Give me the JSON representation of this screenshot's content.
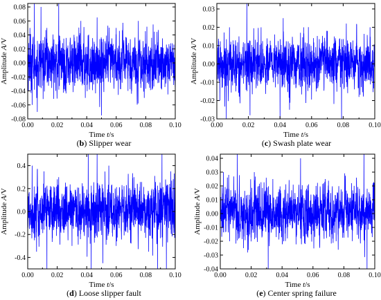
{
  "chart_data": [
    {
      "type": "line",
      "panel_label": "b",
      "caption": "Slipper wear",
      "xlabel": "Time t/s",
      "ylabel": "Amplitude A/V",
      "xlim": [
        0,
        0.1
      ],
      "ylim": [
        -0.08,
        0.085
      ],
      "xticks": [
        "0.00",
        "0.02",
        "0.04",
        "0.06",
        "0.08",
        "0.10"
      ],
      "yticks": [
        "-0.08",
        "-0.06",
        "-0.04",
        "-0.02",
        "0.00",
        "0.02",
        "0.04",
        "0.06",
        "0.08"
      ],
      "series_color": "#0000ff",
      "noise_std": 0.018,
      "spikes": [
        [
          0.0015,
          0.05
        ],
        [
          0.003,
          -0.06
        ],
        [
          0.0045,
          0.085
        ],
        [
          0.0065,
          -0.07
        ],
        [
          0.009,
          0.08
        ],
        [
          0.013,
          0.05
        ],
        [
          0.019,
          -0.04
        ],
        [
          0.021,
          0.085
        ],
        [
          0.036,
          0.06
        ],
        [
          0.039,
          -0.05
        ],
        [
          0.047,
          0.065
        ],
        [
          0.05,
          -0.075
        ],
        [
          0.06,
          0.05
        ],
        [
          0.068,
          -0.04
        ],
        [
          0.075,
          0.06
        ],
        [
          0.079,
          -0.05
        ],
        [
          0.085,
          0.055
        ],
        [
          0.095,
          -0.045
        ]
      ]
    },
    {
      "type": "line",
      "panel_label": "c",
      "caption": "Swash plate wear",
      "xlabel": "Time t/s",
      "ylabel": "Amplitude A/V",
      "xlim": [
        0,
        0.1
      ],
      "ylim": [
        -0.03,
        0.033
      ],
      "xticks": [
        "0.00",
        "0.02",
        "0.04",
        "0.06",
        "0.08",
        "0.10"
      ],
      "yticks": [
        "-0.03",
        "-0.02",
        "-0.01",
        "0.00",
        "0.01",
        "0.02",
        "0.03"
      ],
      "series_color": "#0000ff",
      "noise_std": 0.0065,
      "spikes": [
        [
          0.002,
          -0.02
        ],
        [
          0.006,
          -0.03
        ],
        [
          0.008,
          0.02
        ],
        [
          0.012,
          -0.015
        ],
        [
          0.019,
          0.033
        ],
        [
          0.021,
          -0.028
        ],
        [
          0.028,
          0.02
        ],
        [
          0.04,
          -0.03
        ],
        [
          0.042,
          0.025
        ],
        [
          0.046,
          -0.025
        ],
        [
          0.055,
          0.02
        ],
        [
          0.07,
          0.018
        ],
        [
          0.079,
          -0.03
        ],
        [
          0.082,
          0.022
        ],
        [
          0.09,
          -0.018
        ],
        [
          0.097,
          0.02
        ]
      ]
    },
    {
      "type": "line",
      "panel_label": "d",
      "caption": "Loose slipper fault",
      "xlabel": "Time t/s",
      "ylabel": "Amplitude A/V",
      "xlim": [
        0,
        0.1
      ],
      "ylim": [
        -0.5,
        0.5
      ],
      "xticks": [
        "0.00",
        "0.02",
        "0.04",
        "0.06",
        "0.08",
        "0.10"
      ],
      "yticks": [
        "-0.4",
        "-0.2",
        "0.0",
        "0.2",
        "0.4"
      ],
      "series_color": "#0000ff",
      "noise_std": 0.11,
      "spikes": [
        [
          0.003,
          0.4
        ],
        [
          0.006,
          -0.35
        ],
        [
          0.011,
          0.35
        ],
        [
          0.013,
          -0.5
        ],
        [
          0.021,
          0.3
        ],
        [
          0.03,
          -0.3
        ],
        [
          0.041,
          0.5
        ],
        [
          0.043,
          -0.5
        ],
        [
          0.047,
          0.5
        ],
        [
          0.051,
          -0.45
        ],
        [
          0.055,
          0.4
        ],
        [
          0.06,
          -0.3
        ],
        [
          0.072,
          0.3
        ],
        [
          0.082,
          -0.35
        ],
        [
          0.088,
          -0.5
        ],
        [
          0.091,
          0.5
        ],
        [
          0.094,
          -0.5
        ],
        [
          0.097,
          0.35
        ]
      ]
    },
    {
      "type": "line",
      "panel_label": "e",
      "caption": "Center spring failure",
      "xlabel": "Time t/s",
      "ylabel": "Amplitude A/V",
      "xlim": [
        0,
        0.1
      ],
      "ylim": [
        -0.04,
        0.043
      ],
      "xticks": [
        "0.00",
        "0.02",
        "0.04",
        "0.06",
        "0.08",
        "0.10"
      ],
      "yticks": [
        "-0.04",
        "-0.03",
        "-0.02",
        "-0.01",
        "0.00",
        "0.01",
        "0.02",
        "0.03",
        "0.04"
      ],
      "series_color": "#0000ff",
      "noise_std": 0.009,
      "spikes": [
        [
          0.002,
          0.03
        ],
        [
          0.006,
          -0.02
        ],
        [
          0.011,
          0.043
        ],
        [
          0.015,
          -0.025
        ],
        [
          0.022,
          0.03
        ],
        [
          0.031,
          -0.04
        ],
        [
          0.034,
          0.025
        ],
        [
          0.041,
          -0.02
        ],
        [
          0.052,
          0.04
        ],
        [
          0.055,
          -0.022
        ],
        [
          0.062,
          0.02
        ],
        [
          0.068,
          0.025
        ],
        [
          0.075,
          -0.02
        ],
        [
          0.085,
          0.022
        ],
        [
          0.093,
          0.043
        ],
        [
          0.095,
          -0.04
        ]
      ]
    }
  ]
}
